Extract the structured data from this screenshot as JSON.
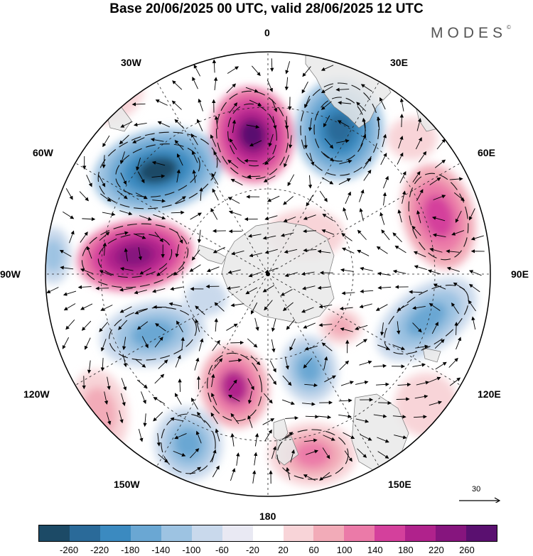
{
  "title": "Base 20/06/2025 00 UTC, valid 28/06/2025 12 UTC",
  "brand": "MODES",
  "brand_mark": "©",
  "longitude_labels": {
    "n0": "0",
    "n30e": "30E",
    "n60e": "60E",
    "n90e": "90E",
    "n120e": "120E",
    "n150e": "150E",
    "n180": "180",
    "n150w": "150W",
    "n120w": "120W",
    "n90w": "90W",
    "n60w": "60W",
    "n30w": "30W"
  },
  "reference_vector": {
    "label": "30"
  },
  "colorbar": {
    "colors": [
      "#1c4a66",
      "#2a6a99",
      "#3b8ac0",
      "#6aa7d3",
      "#9dc3e2",
      "#c9d9ec",
      "#e9e9f3",
      "#ffffff",
      "#f8d4d8",
      "#f2abb8",
      "#eb7aa8",
      "#d4409c",
      "#b0228c",
      "#86157e",
      "#5a1070"
    ],
    "labels": [
      "-260",
      "-220",
      "-180",
      "-140",
      "-100",
      "-60",
      "-20",
      "20",
      "60",
      "100",
      "140",
      "180",
      "220",
      "260"
    ]
  }
}
